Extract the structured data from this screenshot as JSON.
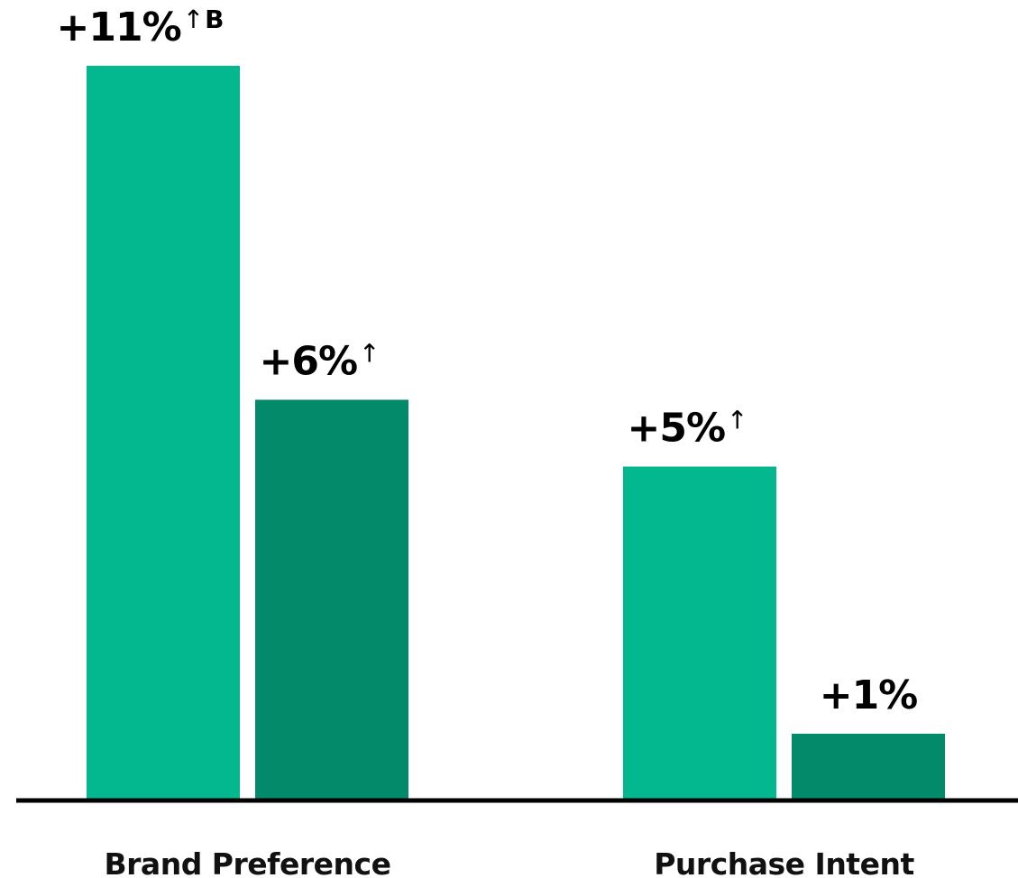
{
  "chart_data": {
    "type": "bar",
    "categories": [
      "Brand Preference",
      "Purchase Intent"
    ],
    "series": [
      {
        "values": [
          11,
          5
        ],
        "labels": [
          {
            "main": "+11%",
            "sup": "↑",
            "sup_letter": "B"
          },
          {
            "main": "+5%",
            "sup": "↑",
            "sup_letter": ""
          }
        ],
        "color": "#03B88E"
      },
      {
        "values": [
          6,
          1
        ],
        "labels": [
          {
            "main": "+6%",
            "sup": "↑",
            "sup_letter": ""
          },
          {
            "main": "+1%",
            "sup": "",
            "sup_letter": ""
          }
        ],
        "color": "#038A6A"
      }
    ],
    "ylim": [
      0,
      11
    ],
    "baseline_color": "#000000",
    "grid": false,
    "legend": "none"
  }
}
